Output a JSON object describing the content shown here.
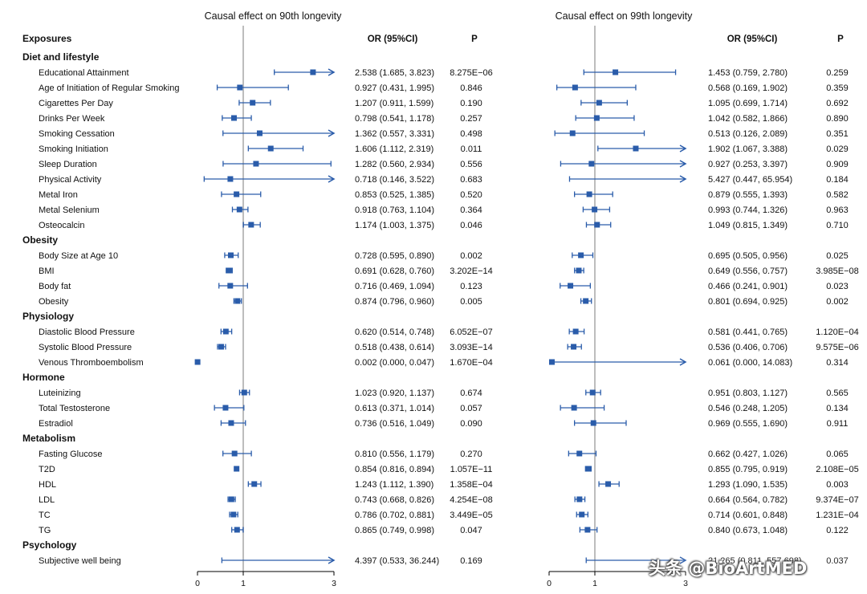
{
  "chart_data": [
    {
      "type": "forest",
      "title": "Causal effect on 90th longevity",
      "columns": {
        "exposure": "Exposures",
        "or": "OR (95%CI)",
        "p": "P"
      },
      "xlim": [
        0,
        3
      ],
      "ticks": [
        0,
        1,
        3
      ],
      "reference_line": 1,
      "groups": [
        {
          "name": "Diet and lifestyle",
          "rows": [
            {
              "label": "Educational Attainment",
              "or": 2.538,
              "lo": 1.685,
              "hi": 3.823,
              "text": "2.538 (1.685, 3.823)",
              "p": "8.275E−06"
            },
            {
              "label": "Age of Initiation of Regular Smoking",
              "or": 0.927,
              "lo": 0.431,
              "hi": 1.995,
              "text": "0.927 (0.431, 1.995)",
              "p": "0.846"
            },
            {
              "label": "Cigarettes Per Day",
              "or": 1.207,
              "lo": 0.911,
              "hi": 1.599,
              "text": "1.207 (0.911, 1.599)",
              "p": "0.190"
            },
            {
              "label": "Drinks Per Week",
              "or": 0.798,
              "lo": 0.541,
              "hi": 1.178,
              "text": "0.798 (0.541, 1.178)",
              "p": "0.257"
            },
            {
              "label": "Smoking Cessation",
              "or": 1.362,
              "lo": 0.557,
              "hi": 3.331,
              "text": "1.362 (0.557, 3.331)",
              "p": "0.498"
            },
            {
              "label": "Smoking Initiation",
              "or": 1.606,
              "lo": 1.112,
              "hi": 2.319,
              "text": "1.606 (1.112, 2.319)",
              "p": "0.011"
            },
            {
              "label": "Sleep Duration",
              "or": 1.282,
              "lo": 0.56,
              "hi": 2.934,
              "text": "1.282 (0.560, 2.934)",
              "p": "0.556"
            },
            {
              "label": "Physical Activity",
              "or": 0.718,
              "lo": 0.146,
              "hi": 3.522,
              "text": "0.718 (0.146, 3.522)",
              "p": "0.683"
            },
            {
              "label": "Metal Iron",
              "or": 0.853,
              "lo": 0.525,
              "hi": 1.385,
              "text": "0.853 (0.525, 1.385)",
              "p": "0.520"
            },
            {
              "label": "Metal Selenium",
              "or": 0.918,
              "lo": 0.763,
              "hi": 1.104,
              "text": "0.918 (0.763, 1.104)",
              "p": "0.364"
            },
            {
              "label": "Osteocalcin",
              "or": 1.174,
              "lo": 1.003,
              "hi": 1.375,
              "text": "1.174 (1.003, 1.375)",
              "p": "0.046"
            }
          ]
        },
        {
          "name": "Obesity",
          "rows": [
            {
              "label": "Body Size at Age 10",
              "or": 0.728,
              "lo": 0.595,
              "hi": 0.89,
              "text": "0.728 (0.595, 0.890)",
              "p": "0.002"
            },
            {
              "label": "BMI",
              "or": 0.691,
              "lo": 0.628,
              "hi": 0.76,
              "text": "0.691 (0.628, 0.760)",
              "p": "3.202E−14"
            },
            {
              "label": "Body fat",
              "or": 0.716,
              "lo": 0.469,
              "hi": 1.094,
              "text": "0.716 (0.469, 1.094)",
              "p": "0.123"
            },
            {
              "label": "Obesity",
              "or": 0.874,
              "lo": 0.796,
              "hi": 0.96,
              "text": "0.874 (0.796, 0.960)",
              "p": "0.005"
            }
          ]
        },
        {
          "name": "Physiology",
          "rows": [
            {
              "label": "Diastolic Blood Pressure",
              "or": 0.62,
              "lo": 0.514,
              "hi": 0.748,
              "text": "0.620 (0.514, 0.748)",
              "p": "6.052E−07"
            },
            {
              "label": "Systolic Blood Pressure",
              "or": 0.518,
              "lo": 0.438,
              "hi": 0.614,
              "text": "0.518 (0.438, 0.614)",
              "p": "3.093E−14"
            },
            {
              "label": "Venous Thromboembolism",
              "or": 0.002,
              "lo": 0.0,
              "hi": 0.047,
              "text": "0.002 (0.000, 0.047)",
              "p": "1.670E−04"
            }
          ]
        },
        {
          "name": "Hormone",
          "rows": [
            {
              "label": "Luteinizing",
              "or": 1.023,
              "lo": 0.92,
              "hi": 1.137,
              "text": "1.023 (0.920, 1.137)",
              "p": "0.674"
            },
            {
              "label": "Total Testosterone",
              "or": 0.613,
              "lo": 0.371,
              "hi": 1.014,
              "text": "0.613 (0.371, 1.014)",
              "p": "0.057"
            },
            {
              "label": "Estradiol",
              "or": 0.736,
              "lo": 0.516,
              "hi": 1.049,
              "text": "0.736 (0.516, 1.049)",
              "p": "0.090"
            }
          ]
        },
        {
          "name": "Metabolism",
          "rows": [
            {
              "label": "Fasting Glucose",
              "or": 0.81,
              "lo": 0.556,
              "hi": 1.179,
              "text": "0.810 (0.556, 1.179)",
              "p": "0.270"
            },
            {
              "label": "T2D",
              "or": 0.854,
              "lo": 0.816,
              "hi": 0.894,
              "text": "0.854 (0.816, 0.894)",
              "p": "1.057E−11"
            },
            {
              "label": "HDL",
              "or": 1.243,
              "lo": 1.112,
              "hi": 1.39,
              "text": "1.243 (1.112, 1.390)",
              "p": "1.358E−04"
            },
            {
              "label": "LDL",
              "or": 0.743,
              "lo": 0.668,
              "hi": 0.826,
              "text": "0.743 (0.668, 0.826)",
              "p": "4.254E−08"
            },
            {
              "label": "TC",
              "or": 0.786,
              "lo": 0.702,
              "hi": 0.881,
              "text": "0.786 (0.702, 0.881)",
              "p": "3.449E−05"
            },
            {
              "label": "TG",
              "or": 0.865,
              "lo": 0.749,
              "hi": 0.998,
              "text": "0.865 (0.749, 0.998)",
              "p": "0.047"
            }
          ]
        },
        {
          "name": "Psychology",
          "rows": [
            {
              "label": "Subjective well being",
              "or": 4.397,
              "lo": 0.533,
              "hi": 36.244,
              "text": "4.397 (0.533, 36.244)",
              "p": "0.169"
            }
          ]
        }
      ]
    },
    {
      "type": "forest",
      "title": "Causal effect on 99th longevity",
      "columns": {
        "or": "OR (95%CI)",
        "p": "P"
      },
      "xlim": [
        0,
        3
      ],
      "ticks": [
        0,
        1,
        3
      ],
      "reference_line": 1,
      "groups": [
        {
          "name": "Diet and lifestyle",
          "rows": [
            {
              "or": 1.453,
              "lo": 0.759,
              "hi": 2.78,
              "text": "1.453 (0.759, 2.780)",
              "p": "0.259"
            },
            {
              "or": 0.568,
              "lo": 0.169,
              "hi": 1.902,
              "text": "0.568 (0.169, 1.902)",
              "p": "0.359"
            },
            {
              "or": 1.095,
              "lo": 0.699,
              "hi": 1.714,
              "text": "1.095 (0.699, 1.714)",
              "p": "0.692"
            },
            {
              "or": 1.042,
              "lo": 0.582,
              "hi": 1.866,
              "text": "1.042 (0.582, 1.866)",
              "p": "0.890"
            },
            {
              "or": 0.513,
              "lo": 0.126,
              "hi": 2.089,
              "text": "0.513 (0.126, 2.089)",
              "p": "0.351"
            },
            {
              "or": 1.902,
              "lo": 1.067,
              "hi": 3.388,
              "text": "1.902 (1.067, 3.388)",
              "p": "0.029"
            },
            {
              "or": 0.927,
              "lo": 0.253,
              "hi": 3.397,
              "text": "0.927 (0.253, 3.397)",
              "p": "0.909"
            },
            {
              "or": 5.427,
              "lo": 0.447,
              "hi": 65.954,
              "text": "5.427 (0.447, 65.954)",
              "p": "0.184"
            },
            {
              "or": 0.879,
              "lo": 0.555,
              "hi": 1.393,
              "text": "0.879 (0.555, 1.393)",
              "p": "0.582"
            },
            {
              "or": 0.993,
              "lo": 0.744,
              "hi": 1.326,
              "text": "0.993 (0.744, 1.326)",
              "p": "0.963"
            },
            {
              "or": 1.049,
              "lo": 0.815,
              "hi": 1.349,
              "text": "1.049 (0.815, 1.349)",
              "p": "0.710"
            }
          ]
        },
        {
          "name": "Obesity",
          "rows": [
            {
              "or": 0.695,
              "lo": 0.505,
              "hi": 0.956,
              "text": "0.695 (0.505, 0.956)",
              "p": "0.025"
            },
            {
              "or": 0.649,
              "lo": 0.556,
              "hi": 0.757,
              "text": "0.649 (0.556, 0.757)",
              "p": "3.985E−08"
            },
            {
              "or": 0.466,
              "lo": 0.241,
              "hi": 0.901,
              "text": "0.466 (0.241, 0.901)",
              "p": "0.023"
            },
            {
              "or": 0.801,
              "lo": 0.694,
              "hi": 0.925,
              "text": "0.801 (0.694, 0.925)",
              "p": "0.002"
            }
          ]
        },
        {
          "name": "Physiology",
          "rows": [
            {
              "or": 0.581,
              "lo": 0.441,
              "hi": 0.765,
              "text": "0.581 (0.441, 0.765)",
              "p": "1.120E−04"
            },
            {
              "or": 0.536,
              "lo": 0.406,
              "hi": 0.706,
              "text": "0.536 (0.406, 0.706)",
              "p": "9.575E−06"
            },
            {
              "or": 0.061,
              "lo": 0.0,
              "hi": 14.083,
              "text": "0.061 (0.000, 14.083)",
              "p": "0.314"
            }
          ]
        },
        {
          "name": "Hormone",
          "rows": [
            {
              "or": 0.951,
              "lo": 0.803,
              "hi": 1.127,
              "text": "0.951 (0.803, 1.127)",
              "p": "0.565"
            },
            {
              "or": 0.546,
              "lo": 0.248,
              "hi": 1.205,
              "text": "0.546 (0.248, 1.205)",
              "p": "0.134"
            },
            {
              "or": 0.969,
              "lo": 0.555,
              "hi": 1.69,
              "text": "0.969 (0.555, 1.690)",
              "p": "0.911"
            }
          ]
        },
        {
          "name": "Metabolism",
          "rows": [
            {
              "or": 0.662,
              "lo": 0.427,
              "hi": 1.026,
              "text": "0.662 (0.427, 1.026)",
              "p": "0.065"
            },
            {
              "or": 0.855,
              "lo": 0.795,
              "hi": 0.919,
              "text": "0.855 (0.795, 0.919)",
              "p": "2.108E−05"
            },
            {
              "or": 1.293,
              "lo": 1.09,
              "hi": 1.535,
              "text": "1.293 (1.090, 1.535)",
              "p": "0.003"
            },
            {
              "or": 0.664,
              "lo": 0.564,
              "hi": 0.782,
              "text": "0.664 (0.564, 0.782)",
              "p": "9.374E−07"
            },
            {
              "or": 0.714,
              "lo": 0.601,
              "hi": 0.848,
              "text": "0.714 (0.601, 0.848)",
              "p": "1.231E−04"
            },
            {
              "or": 0.84,
              "lo": 0.673,
              "hi": 1.048,
              "text": "0.840 (0.673, 1.048)",
              "p": "0.122"
            }
          ]
        },
        {
          "name": "Psychology",
          "rows": [
            {
              "or": 21.265,
              "lo": 0.811,
              "hi": 557.698,
              "text": "21.265 (0.811, 557.698)",
              "p": "0.037"
            }
          ]
        }
      ]
    }
  ],
  "colors": {
    "marker": "#2a5caa",
    "reference": "#bdbdbd",
    "axis": "#000000",
    "text": "#111111"
  },
  "watermark": "头条 @BioArtMED"
}
